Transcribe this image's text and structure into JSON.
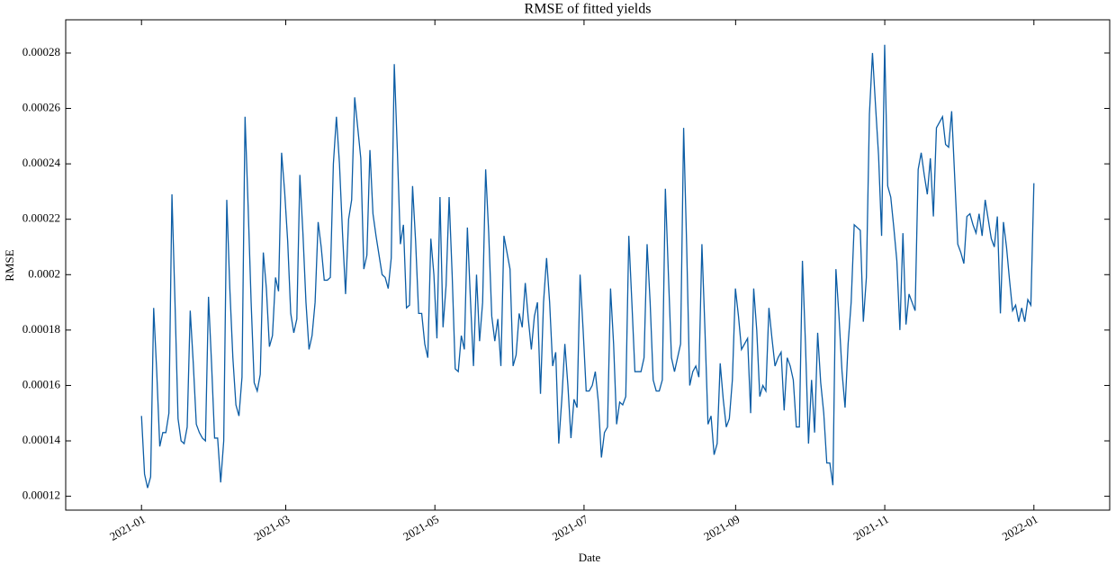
{
  "chart_data": {
    "type": "line",
    "title": "RMSE of fitted yields",
    "xlabel": "Date",
    "ylabel": "RMSE",
    "xlim": [
      "2020-12",
      "2022-02"
    ],
    "xticks": [
      "2021-01",
      "2021-03",
      "2021-05",
      "2021-07",
      "2021-09",
      "2021-11",
      "2022-01"
    ],
    "ylim": [
      0.000115,
      0.000292
    ],
    "yticks": [
      0.00012,
      0.00014,
      0.00016,
      0.00018,
      0.0002,
      0.00022,
      0.00024,
      0.00026,
      0.00028
    ],
    "series": [
      {
        "color": "#0c5da5",
        "values": [
          0.000149,
          0.000128,
          0.000123,
          0.000127,
          0.000188,
          0.000165,
          0.000138,
          0.000143,
          0.000143,
          0.00015,
          0.000229,
          0.00019,
          0.000148,
          0.00014,
          0.000139,
          0.000145,
          0.000187,
          0.000168,
          0.000146,
          0.000143,
          0.000141,
          0.00014,
          0.000192,
          0.000168,
          0.000141,
          0.000141,
          0.000125,
          0.00014,
          0.000227,
          0.000195,
          0.00017,
          0.000153,
          0.000149,
          0.000163,
          0.000257,
          0.000225,
          0.00019,
          0.000161,
          0.000158,
          0.000164,
          0.000208,
          0.000195,
          0.000174,
          0.000178,
          0.000199,
          0.000194,
          0.000244,
          0.00023,
          0.000212,
          0.000186,
          0.000179,
          0.000184,
          0.000236,
          0.000215,
          0.00019,
          0.000173,
          0.000178,
          0.00019,
          0.000219,
          0.00021,
          0.000198,
          0.000198,
          0.000199,
          0.00024,
          0.000257,
          0.00024,
          0.000215,
          0.000193,
          0.00022,
          0.000227,
          0.000264,
          0.000253,
          0.000242,
          0.000202,
          0.000207,
          0.000245,
          0.000222,
          0.000214,
          0.000207,
          0.0002,
          0.000199,
          0.000195,
          0.000206,
          0.000276,
          0.000245,
          0.000211,
          0.000218,
          0.000188,
          0.000189,
          0.000232,
          0.000212,
          0.000186,
          0.000186,
          0.000175,
          0.00017,
          0.000213,
          0.0002,
          0.000177,
          0.000228,
          0.000181,
          0.000196,
          0.000228,
          0.0002,
          0.000166,
          0.000165,
          0.000178,
          0.000173,
          0.000217,
          0.000191,
          0.000167,
          0.0002,
          0.000176,
          0.00019,
          0.000238,
          0.000215,
          0.000185,
          0.000176,
          0.000184,
          0.000167,
          0.000214,
          0.000208,
          0.000202,
          0.000167,
          0.000171,
          0.000186,
          0.000181,
          0.000197,
          0.000184,
          0.000173,
          0.000185,
          0.00019,
          0.000157,
          0.00019,
          0.000206,
          0.00019,
          0.000167,
          0.000172,
          0.000139,
          0.000155,
          0.000175,
          0.00016,
          0.000141,
          0.000155,
          0.000152,
          0.0002,
          0.00018,
          0.000158,
          0.000158,
          0.00016,
          0.000165,
          0.000154,
          0.000134,
          0.000143,
          0.000145,
          0.000195,
          0.000175,
          0.000146,
          0.000154,
          0.000153,
          0.000156,
          0.000214,
          0.00019,
          0.000165,
          0.000165,
          0.000165,
          0.00017,
          0.000211,
          0.00019,
          0.000162,
          0.000158,
          0.000158,
          0.000162,
          0.000231,
          0.0002,
          0.00017,
          0.000165,
          0.00017,
          0.000175,
          0.000253,
          0.00021,
          0.00016,
          0.000165,
          0.000167,
          0.000163,
          0.000211,
          0.00018,
          0.000146,
          0.000149,
          0.000135,
          0.000139,
          0.000168,
          0.000155,
          0.000145,
          0.000148,
          0.000162,
          0.000195,
          0.000185,
          0.000173,
          0.000175,
          0.000177,
          0.00015,
          0.000195,
          0.00018,
          0.000156,
          0.00016,
          0.000158,
          0.000188,
          0.000177,
          0.000167,
          0.00017,
          0.000172,
          0.000151,
          0.00017,
          0.000167,
          0.000162,
          0.000145,
          0.000145,
          0.000205,
          0.000175,
          0.000139,
          0.000162,
          0.000143,
          0.000179,
          0.000161,
          0.00015,
          0.000132,
          0.000132,
          0.000124,
          0.000202,
          0.000185,
          0.000165,
          0.000152,
          0.000175,
          0.00019,
          0.000218,
          0.000217,
          0.000216,
          0.000183,
          0.000199,
          0.000258,
          0.00028,
          0.000261,
          0.000243,
          0.000214,
          0.000283,
          0.000232,
          0.000228,
          0.000217,
          0.000205,
          0.00018,
          0.000215,
          0.000182,
          0.000193,
          0.00019,
          0.000187,
          0.000238,
          0.000244,
          0.000236,
          0.000229,
          0.000242,
          0.000221,
          0.000253,
          0.000255,
          0.000257,
          0.000247,
          0.000246,
          0.000259,
          0.000235,
          0.000211,
          0.000208,
          0.000204,
          0.000221,
          0.000222,
          0.000218,
          0.000215,
          0.000222,
          0.000214,
          0.000227,
          0.00022,
          0.000213,
          0.00021,
          0.000221,
          0.000186,
          0.000219,
          0.00021,
          0.000198,
          0.000187,
          0.000189,
          0.000183,
          0.000188,
          0.000183,
          0.000191,
          0.000189,
          0.000233
        ]
      }
    ]
  }
}
